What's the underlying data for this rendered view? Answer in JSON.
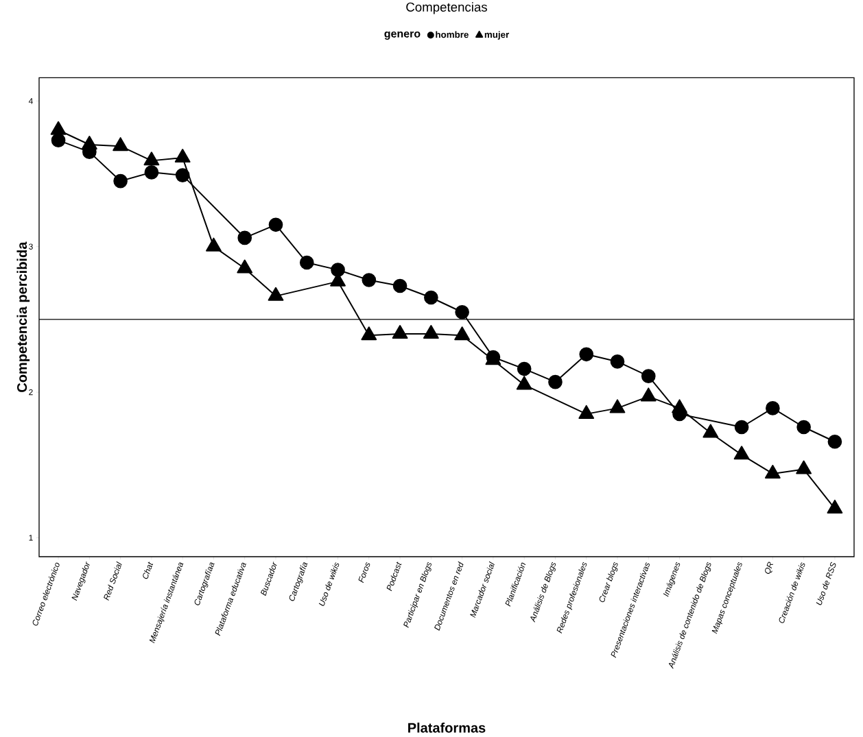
{
  "chart_data": {
    "type": "line",
    "title": "Competencias",
    "xlabel": "Plataformas",
    "ylabel": "Competencia percibida",
    "legend_title": "genero",
    "legend": "top",
    "categories": [
      "Correo electrónico",
      "Navegador",
      "Red Social",
      "Chat",
      "Mensajería instantánea",
      "Cartografíaa",
      "Plataforma educativa",
      "Buscador",
      "Cartografía",
      "Uso de wikis",
      "Foros",
      "Podcast",
      "Participar en Blogs",
      "Documentos en red",
      "Marcador social",
      "Planificación",
      "Análisis de Blogs",
      "Redes profesionales",
      "Crear blogs",
      "Presentaciones interactivas",
      "Imágenes",
      "Análisis de contenido de Blogs",
      "Mapas conceptuales",
      "QR",
      "Creación de wikis",
      "Uso de RSS"
    ],
    "series": [
      {
        "name": "hombre",
        "color": "#000000",
        "marker": "circle",
        "values": [
          3.73,
          3.65,
          3.45,
          3.51,
          3.49,
          null,
          3.06,
          3.15,
          2.89,
          2.84,
          2.77,
          2.73,
          2.65,
          2.55,
          2.24,
          2.16,
          2.07,
          2.26,
          2.21,
          2.11,
          1.85,
          null,
          1.76,
          1.89,
          1.76,
          1.66
        ]
      },
      {
        "name": "mujer",
        "color": "#000000",
        "marker": "triangle",
        "values": [
          3.8,
          3.7,
          3.69,
          3.59,
          3.61,
          3.0,
          2.85,
          2.66,
          null,
          2.76,
          2.39,
          2.4,
          2.4,
          2.39,
          2.22,
          2.05,
          null,
          1.85,
          1.89,
          1.97,
          1.89,
          1.72,
          1.57,
          1.44,
          1.47,
          1.2
        ]
      }
    ],
    "ylim": [
      0.87,
      4.16
    ],
    "yticks": [
      1,
      2,
      3,
      4
    ],
    "grid": false,
    "line_style": "solid",
    "ref_lines": [
      {
        "axis": "y",
        "value": 2.5,
        "color": "#000000"
      }
    ]
  }
}
